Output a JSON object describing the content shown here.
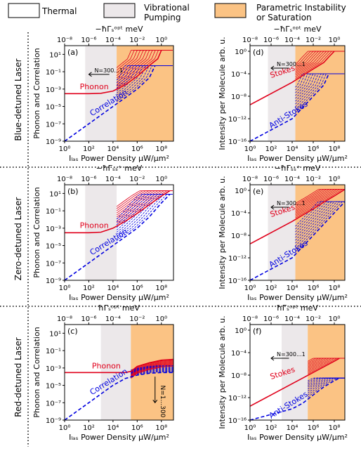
{
  "legend": [
    {
      "label": "Thermal",
      "color": "#ffffff"
    },
    {
      "label": "Vibrational\nPumping",
      "color": "#ece8ea"
    },
    {
      "label": "Parametric Instability\nor Saturation",
      "color": "#fbc384"
    }
  ],
  "row_labels": [
    "Blue-detuned Laser",
    "Zero-detuned Laser",
    "Red-detuned Laser"
  ],
  "colors": {
    "phonon": "#e0001b",
    "correlation": "#0000e0",
    "stokes": "#e0001b",
    "anti_stokes": "#0000e0",
    "pumping": "#ece8ea",
    "instability": "#fbc384"
  },
  "chart_data": [
    {
      "id": "a",
      "panel_label": "(a)",
      "type": "line",
      "top_label": "−ħΓₛᵒᵖᵗ meV",
      "top_ticks": [
        "10⁻⁸",
        "10⁻⁶",
        "10⁻⁴",
        "10⁻²",
        "10⁰"
      ],
      "xlabel": "Iₗₐₛ Power Density μW/μm²",
      "ylabel": "Phonon and Correlation",
      "xlim": [
        1,
        1000000000.0
      ],
      "ylim": [
        1e-09,
        100.0
      ],
      "log_x": true,
      "log_y": true,
      "x_ticks": [
        "10⁰",
        "10²",
        "10⁴",
        "10⁶",
        "10⁸"
      ],
      "y_ticks": [
        "10⁻⁹",
        "10⁻⁷",
        "10⁻⁵",
        "10⁻³",
        "10⁻¹",
        "10¹"
      ],
      "pumping_range": [
        50,
        20000.0
      ],
      "instability_range": [
        20000.0,
        1000000000.0
      ],
      "arrow_label": "N=300...1",
      "series": [
        {
          "name": "Phonon",
          "x": [
            1,
            100,
            1000,
            10000.0,
            100000.0,
            1000000.0,
            10000000.0,
            50000000.0,
            100000000.0
          ],
          "y": [
            0.0003,
            0.0003,
            0.00033,
            0.0006,
            0.003,
            0.03,
            0.5,
            3,
            30
          ]
        },
        {
          "name": "Correlation",
          "x": [
            1,
            100,
            10000.0,
            100000.0,
            1000000.0,
            10000000.0,
            30000000.0
          ],
          "y": [
            1e-09,
            1e-07,
            1e-05,
            0.0001,
            0.001,
            0.02,
            0.5
          ]
        }
      ]
    },
    {
      "id": "b",
      "panel_label": "(b)",
      "type": "line",
      "top_label": "−ħΓₛₛ⁺ meV",
      "top_ticks": [
        "10⁻⁸",
        "10⁻⁶",
        "10⁻⁴",
        "10⁻²",
        "10⁰"
      ],
      "xlabel": "Iₗₐₛ Power Density μW/μm²",
      "ylabel": "Phonon and Correlation",
      "xlim": [
        1,
        1000000000.0
      ],
      "ylim": [
        1e-09,
        100.0
      ],
      "log_x": true,
      "log_y": true,
      "x_ticks": [
        "10⁰",
        "10²",
        "10⁴",
        "10⁶",
        "10⁸"
      ],
      "y_ticks": [
        "10⁻⁹",
        "10⁻⁷",
        "10⁻⁵",
        "10⁻³",
        "10⁻¹",
        "10¹"
      ],
      "pumping_range": [
        50,
        20000.0
      ],
      "instability_range": null,
      "arrow_label": "",
      "series": [
        {
          "name": "Phonon",
          "x": [
            1,
            100,
            1000,
            10000.0,
            100000.0,
            1000000.0,
            10000000.0,
            100000000.0,
            500000000.0
          ],
          "y": [
            0.0003,
            0.0003,
            0.00035,
            0.001,
            0.006,
            0.05,
            0.5,
            5,
            20
          ]
        },
        {
          "name": "Correlation",
          "x": [
            1,
            100,
            10000.0,
            100000.0,
            1000000.0,
            10000000.0,
            100000000.0,
            500000000.0
          ],
          "y": [
            1e-09,
            1e-07,
            1e-05,
            0.0001,
            0.001,
            0.02,
            0.8,
            8
          ]
        }
      ]
    },
    {
      "id": "c",
      "panel_label": "(c)",
      "type": "line",
      "top_label": "ħΓₛᵒᵖᵗ meV",
      "top_ticks": [
        "10⁻⁸",
        "10⁻⁶",
        "10⁻⁴",
        "10⁻²",
        "10⁰"
      ],
      "xlabel": "Iₗₐₛ Power Density μW/μm²",
      "ylabel": "Phonon and Correlation",
      "xlim": [
        1,
        1000000000.0
      ],
      "ylim": [
        1e-09,
        100.0
      ],
      "log_x": true,
      "log_y": true,
      "x_ticks": [
        "10⁰",
        "10²",
        "10⁴",
        "10⁶",
        "10⁸"
      ],
      "y_ticks": [
        "10⁻⁹",
        "10⁻⁷",
        "10⁻⁵",
        "10⁻³",
        "10⁻¹",
        "10¹"
      ],
      "pumping_range": [
        1000,
        300000.0
      ],
      "instability_range": [
        300000.0,
        1000000000.0
      ],
      "arrow_label": "N=1...300",
      "series": [
        {
          "name": "Phonon",
          "x": [
            1,
            100,
            10000.0,
            100000.0,
            300000.0,
            1000000.0,
            10000000.0,
            100000000.0,
            1000000000.0
          ],
          "y": [
            0.0003,
            0.0003,
            0.0003,
            0.0003,
            0.0004,
            0.0015,
            0.004,
            0.008,
            0.01
          ]
        },
        {
          "name": "Correlation",
          "x": [
            1,
            100,
            10000.0,
            100000.0,
            1000000.0,
            10000000.0,
            100000000.0,
            1000000000.0
          ],
          "y": [
            1e-09,
            1e-07,
            1e-05,
            6e-05,
            0.00015,
            0.00025,
            0.0003,
            0.0003
          ]
        }
      ]
    },
    {
      "id": "d",
      "panel_label": "(d)",
      "type": "line",
      "top_label": "−ħΓₛᵒᵖᵗ meV",
      "top_ticks": [
        "10⁻⁸",
        "10⁻⁶",
        "10⁻⁴",
        "10⁻²",
        "10⁰"
      ],
      "xlabel": "Iₗₐₛ Power Density μW/μm²",
      "ylabel": "Intensity per Molecule arb. u.",
      "xlim": [
        1,
        1000000000.0
      ],
      "ylim": [
        1e-16,
        10
      ],
      "log_x": true,
      "log_y": true,
      "x_ticks": [
        "10⁰",
        "10²",
        "10⁴",
        "10⁶",
        "10⁸"
      ],
      "y_ticks": [
        "10⁻¹⁶",
        "10⁻¹²",
        "10⁻⁸",
        "10⁻⁴",
        "10⁰"
      ],
      "pumping_range": [
        50,
        20000.0
      ],
      "instability_range": [
        20000.0,
        1000000000.0
      ],
      "arrow_label": "N=300...1",
      "series": [
        {
          "name": "Stokes",
          "x": [
            1,
            100,
            10000.0,
            100000.0,
            1000000.0,
            10000000.0,
            30000000.0,
            100000000.0
          ],
          "y": [
            3e-10,
            3e-08,
            3e-06,
            5e-05,
            0.0007,
            0.01,
            0.1,
            1
          ]
        },
        {
          "name": "Anti-Stokes",
          "x": [
            1,
            100,
            10000.0,
            100000.0,
            1000000.0,
            10000000.0,
            30000000.0
          ],
          "y": [
            1e-16,
            1e-14,
            1e-12,
            1e-10,
            1e-08,
            1e-06,
            0.0001
          ]
        }
      ]
    },
    {
      "id": "e",
      "panel_label": "(e)",
      "type": "line",
      "top_label": "−ħΓₛₛ⁺ meV",
      "top_ticks": [
        "10⁻⁸",
        "10⁻⁶",
        "10⁻⁴",
        "10⁻²",
        "10⁰"
      ],
      "xlabel": "Iₗₐₛ Power Density μW/μm²",
      "ylabel": "Intensity per Molecule arb. u.",
      "xlim": [
        1,
        1000000000.0
      ],
      "ylim": [
        1e-16,
        10
      ],
      "log_x": true,
      "log_y": true,
      "x_ticks": [
        "10⁰",
        "10²",
        "10⁴",
        "10⁶",
        "10⁸"
      ],
      "y_ticks": [
        "10⁻¹⁶",
        "10⁻¹²",
        "10⁻⁸",
        "10⁻⁴",
        "10⁰"
      ],
      "pumping_range": [
        50,
        20000.0
      ],
      "instability_range": [
        20000.0,
        1000000000.0
      ],
      "arrow_label": "N=300...1",
      "series": [
        {
          "name": "Stokes",
          "x": [
            1,
            100,
            10000.0,
            100000.0,
            1000000.0,
            10000000.0,
            100000000.0,
            1000000000.0
          ],
          "y": [
            3e-10,
            3e-08,
            3e-06,
            4e-05,
            0.0005,
            0.008,
            0.1,
            1.5
          ]
        },
        {
          "name": "Anti-Stokes",
          "x": [
            1,
            100,
            10000.0,
            100000.0,
            1000000.0,
            10000000.0,
            100000000.0,
            1000000000.0
          ],
          "y": [
            1e-16,
            1e-14,
            1e-12,
            1e-10,
            1e-08,
            1e-06,
            0.0001,
            0.01
          ]
        }
      ]
    },
    {
      "id": "f",
      "panel_label": "(f)",
      "type": "line",
      "top_label": "ħΓₛᵒᵖᵗ meV",
      "top_ticks": [
        "10⁻⁸",
        "10⁻⁶",
        "10⁻⁴",
        "10⁻²",
        "10⁰"
      ],
      "xlabel": "Iₗₐₛ Power Density μW/μm²",
      "ylabel": "Intensity per Molecule arb. u.",
      "xlim": [
        1,
        1000000000.0
      ],
      "ylim": [
        1e-16,
        10
      ],
      "log_x": true,
      "log_y": true,
      "x_ticks": [
        "10⁰",
        "10²",
        "10⁴",
        "10⁶",
        "10⁸"
      ],
      "y_ticks": [
        "10⁻¹⁶",
        "10⁻¹²",
        "10⁻⁸",
        "10⁻⁴",
        "10⁰"
      ],
      "pumping_range": [
        1000,
        300000.0
      ],
      "instability_range": [
        300000.0,
        1000000000.0
      ],
      "arrow_label": "N=300...1",
      "series": [
        {
          "name": "Stokes",
          "x": [
            1,
            100,
            10000.0,
            100000.0,
            1000000.0,
            10000000.0,
            100000000.0,
            300000000.0
          ],
          "y": [
            3e-14,
            3e-12,
            3e-10,
            3e-09,
            3e-08,
            3e-07,
            3e-06,
            1e-05
          ]
        },
        {
          "name": "Anti-Stokes",
          "x": [
            1,
            100,
            10000.0,
            100000.0,
            1000000.0,
            10000000.0,
            100000000.0,
            300000000.0
          ],
          "y": [
            1e-16,
            1e-15,
            1e-14,
            1e-13,
            3e-12,
            8e-11,
            1e-09,
            3e-09
          ]
        }
      ]
    }
  ]
}
